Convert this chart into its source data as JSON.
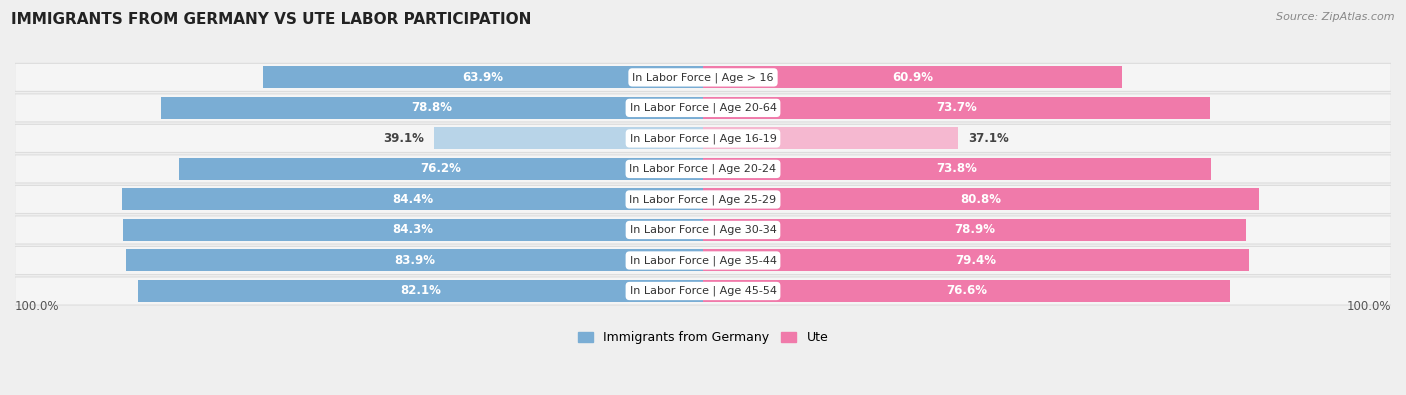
{
  "title": "IMMIGRANTS FROM GERMANY VS UTE LABOR PARTICIPATION",
  "source": "Source: ZipAtlas.com",
  "categories": [
    "In Labor Force | Age > 16",
    "In Labor Force | Age 20-64",
    "In Labor Force | Age 16-19",
    "In Labor Force | Age 20-24",
    "In Labor Force | Age 25-29",
    "In Labor Force | Age 30-34",
    "In Labor Force | Age 35-44",
    "In Labor Force | Age 45-54"
  ],
  "germany_values": [
    63.9,
    78.8,
    39.1,
    76.2,
    84.4,
    84.3,
    83.9,
    82.1
  ],
  "ute_values": [
    60.9,
    73.7,
    37.1,
    73.8,
    80.8,
    78.9,
    79.4,
    76.6
  ],
  "germany_color": "#7aadd4",
  "germany_color_light": "#b8d4e8",
  "ute_color": "#f07aaa",
  "ute_color_light": "#f5b8d0",
  "bar_height": 0.72,
  "background_color": "#efefef",
  "row_bg_light": "#f7f7f7",
  "row_bg_dark": "#e8e8e8",
  "label_fontsize": 9,
  "title_fontsize": 11,
  "max_value": 100.0,
  "legend_labels": [
    "Immigrants from Germany",
    "Ute"
  ],
  "light_threshold": 50.0
}
